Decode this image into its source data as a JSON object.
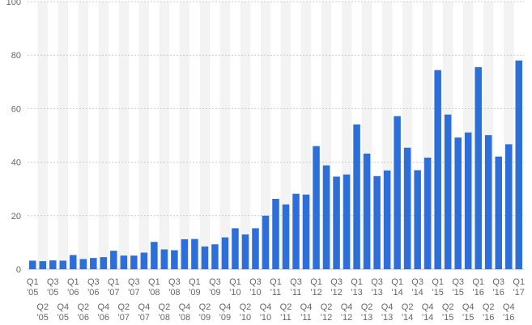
{
  "chart_data": {
    "type": "bar",
    "title": "",
    "xlabel": "",
    "ylabel": "",
    "ylim": [
      0,
      100
    ],
    "yticks": [
      0,
      20,
      40,
      60,
      80,
      100
    ],
    "grid": true,
    "legend": "none",
    "bar_color": "#2e6ed8",
    "categories": [
      "Q1 '05",
      "Q2 '05",
      "Q3 '05",
      "Q4 '05",
      "Q1 '06",
      "Q2 '06",
      "Q3 '06",
      "Q4 '06",
      "Q1 '07",
      "Q2 '07",
      "Q3 '07",
      "Q4 '07",
      "Q1 '08",
      "Q2 '08",
      "Q3 '08",
      "Q4 '08",
      "Q1 '09",
      "Q2 '09",
      "Q3 '09",
      "Q4 '09",
      "Q1 '10",
      "Q2 '10",
      "Q3 '10",
      "Q4 '10",
      "Q1 '11",
      "Q2 '11",
      "Q3 '11",
      "Q4 '11",
      "Q1 '12",
      "Q2 '12",
      "Q3 '12",
      "Q4 '12",
      "Q1 '13",
      "Q2 '13",
      "Q3 '13",
      "Q4 '13",
      "Q1 '14",
      "Q2 '14",
      "Q3 '14",
      "Q4 '14",
      "Q1 '15",
      "Q2 '15",
      "Q3 '15",
      "Q4 '15",
      "Q1 '16",
      "Q2 '16",
      "Q3 '16",
      "Q4 '16",
      "Q1 '17"
    ],
    "values": [
      3.2,
      3.0,
      3.3,
      3.2,
      5.3,
      3.8,
      4.2,
      4.5,
      6.9,
      5.1,
      5.1,
      6.2,
      10.2,
      7.4,
      7.1,
      11.2,
      11.3,
      8.5,
      9.3,
      11.9,
      15.3,
      13.0,
      15.3,
      20.0,
      26.3,
      24.2,
      28.2,
      27.9,
      46.0,
      38.8,
      34.6,
      35.4,
      54.1,
      43.2,
      34.8,
      36.9,
      57.2,
      45.4,
      37.0,
      41.7,
      74.4,
      57.8,
      49.2,
      51.1,
      75.5,
      50.1,
      42.1,
      46.7,
      78.0
    ]
  }
}
